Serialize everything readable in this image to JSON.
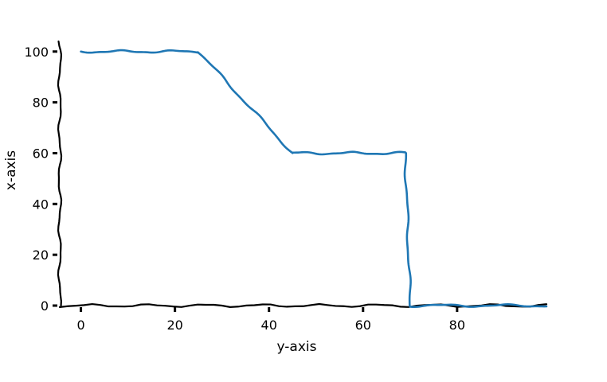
{
  "chart_data": {
    "type": "line",
    "title": "",
    "xlabel": "y-axis",
    "ylabel": "x-axis",
    "xlim": [
      -4.5,
      99
    ],
    "ylim": [
      0,
      104
    ],
    "xticks": [
      0,
      20,
      40,
      60,
      80
    ],
    "yticks": [
      0,
      20,
      40,
      60,
      80,
      100
    ],
    "grid": false,
    "style": "xkcd",
    "series": [
      {
        "color": "#1f77b4",
        "x": [
          0,
          25,
          45,
          69,
          70,
          99
        ],
        "y": [
          100,
          100,
          60,
          60,
          0,
          0
        ]
      }
    ]
  }
}
